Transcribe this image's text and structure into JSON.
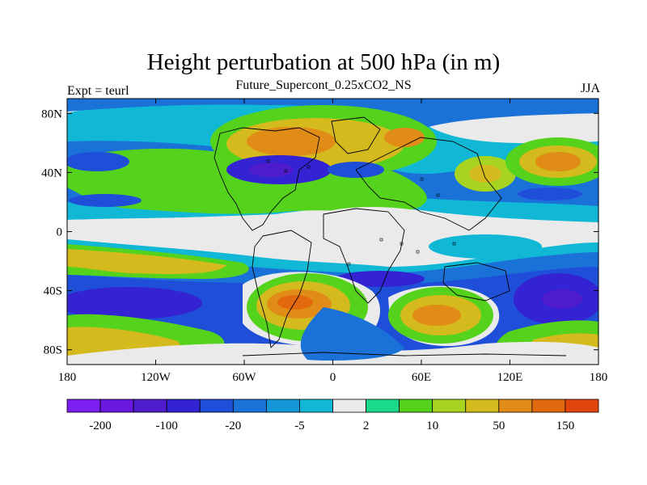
{
  "chart_data": {
    "type": "heatmap",
    "title": "Height perturbation at 500 hPa (in m)",
    "subtitle": "Future_Supercont_0.25xCO2_NS",
    "left_string": "Expt = teurl",
    "right_string": "JJA",
    "x_ticks": [
      "180",
      "120W",
      "60W",
      "0",
      "60E",
      "120E",
      "180"
    ],
    "y_ticks": [
      "80N",
      "40N",
      "0",
      "40S",
      "80S"
    ],
    "xlim": [
      -180,
      180
    ],
    "ylim": [
      -90,
      90
    ],
    "colorbar": {
      "colors": [
        "#7b1ff0",
        "#6a18e0",
        "#4e1ccc",
        "#3323d2",
        "#1f4ed8",
        "#1a72d8",
        "#1596d6",
        "#10b8d6",
        "#eaeaea",
        "#1bd98a",
        "#54d21c",
        "#a6d420",
        "#d4ba1c",
        "#e08c16",
        "#e2690e",
        "#e2460e"
      ],
      "labels": [
        {
          "text": "-200",
          "index": 1
        },
        {
          "text": "-100",
          "index": 3
        },
        {
          "text": "-20",
          "index": 5
        },
        {
          "text": "-5",
          "index": 7
        },
        {
          "text": "2",
          "index": 9
        },
        {
          "text": "10",
          "index": 11
        },
        {
          "text": "50",
          "index": 13
        },
        {
          "text": "150",
          "index": 15
        }
      ]
    }
  }
}
